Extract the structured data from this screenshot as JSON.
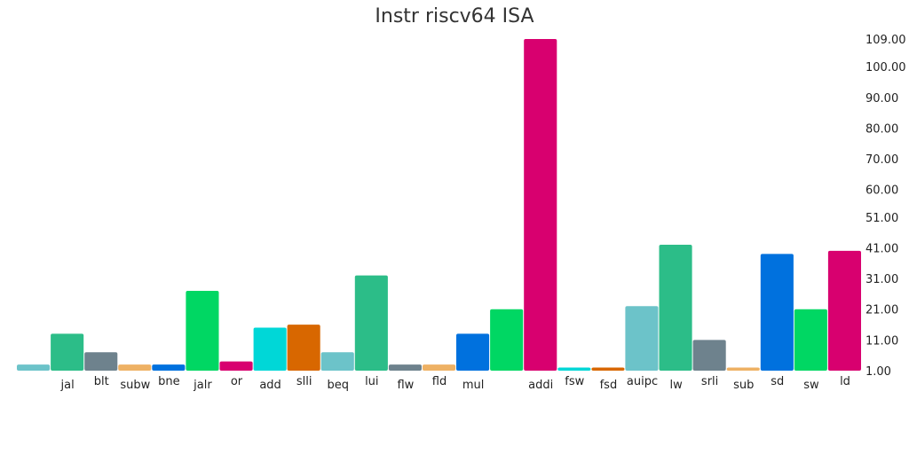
{
  "chart_data": {
    "type": "bar",
    "title": "Instr riscv64 ISA",
    "xlabel": "",
    "ylabel": "",
    "ylim": [
      1,
      109
    ],
    "y_ticks": [
      "1.00",
      "11.00",
      "21.00",
      "31.00",
      "41.00",
      "51.00",
      "60.00",
      "70.00",
      "80.00",
      "90.00",
      "100.00",
      "109.00"
    ],
    "y_axis_position": "right",
    "grid": false,
    "legend": "none",
    "categories": [
      "",
      "jal",
      "blt",
      "subw",
      "bne",
      "jalr",
      "or",
      "add",
      "slli",
      "beq",
      "lui",
      "flw",
      "fld",
      "mul",
      "",
      "addi",
      "fsw",
      "fsd",
      "auipc",
      "lw",
      "srli",
      "sub",
      "sd",
      "sw",
      "ld"
    ],
    "values": [
      3,
      13,
      7,
      3,
      3,
      27,
      4,
      15,
      16,
      7,
      32,
      3,
      3,
      13,
      21,
      109,
      2,
      2,
      22,
      42,
      11,
      2,
      39,
      21,
      40
    ],
    "colors": [
      "#6cc3c9",
      "#2cbd88",
      "#6e828d",
      "#eeb164",
      "#0071de",
      "#00d763",
      "#d8006f",
      "#00d7d7",
      "#d86700",
      "#6cc3c9",
      "#2cbd88",
      "#6e828d",
      "#eeb164",
      "#0071de",
      "#00d763",
      "#d8006f",
      "#00d7d7",
      "#d86700",
      "#6cc3c9",
      "#2cbd88",
      "#6e828d",
      "#eeb164",
      "#0071de",
      "#00d763",
      "#d8006f"
    ]
  }
}
